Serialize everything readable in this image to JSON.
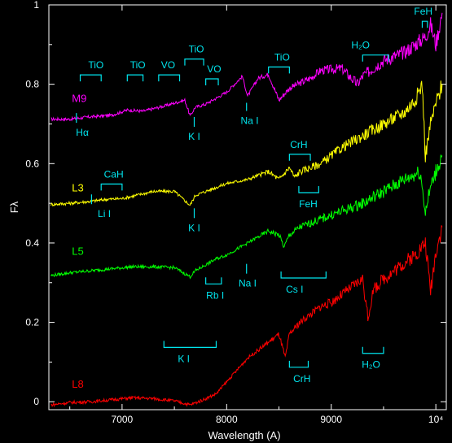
{
  "chart_data": {
    "type": "line",
    "xlabel": "Wavelength (A)",
    "ylabel": "Fλ",
    "xlim": [
      6300,
      10100
    ],
    "ylim": [
      -0.02,
      1.0
    ],
    "x_ticks": [
      {
        "v": 7000,
        "label": "7000"
      },
      {
        "v": 8000,
        "label": "8000"
      },
      {
        "v": 9000,
        "label": "9000"
      },
      {
        "v": 10000,
        "label": "10⁴"
      }
    ],
    "y_ticks": [
      {
        "v": 0,
        "label": "0"
      },
      {
        "v": 0.2,
        "label": "0.2"
      },
      {
        "v": 0.4,
        "label": "0.4"
      },
      {
        "v": 0.6,
        "label": "0.6"
      },
      {
        "v": 0.8,
        "label": "0.8"
      },
      {
        "v": 1.0,
        "label": "1"
      }
    ],
    "series": [
      {
        "name": "M9",
        "color": "#ff00ff",
        "label_x": 6520,
        "label_y": 0.755,
        "x": [
          6320,
          6500,
          6700,
          6900,
          7050,
          7200,
          7400,
          7600,
          7650,
          7700,
          7800,
          8000,
          8150,
          8200,
          8300,
          8400,
          8500,
          8600,
          8800,
          8900,
          9100,
          9250,
          9300,
          9400,
          9500,
          9600,
          9700,
          9800,
          9900,
          9950,
          10000,
          10060
        ],
        "values": [
          0.712,
          0.712,
          0.718,
          0.722,
          0.735,
          0.732,
          0.745,
          0.76,
          0.72,
          0.742,
          0.75,
          0.78,
          0.82,
          0.77,
          0.815,
          0.825,
          0.76,
          0.79,
          0.815,
          0.835,
          0.84,
          0.8,
          0.82,
          0.84,
          0.86,
          0.87,
          0.88,
          0.9,
          0.92,
          0.95,
          0.9,
          0.98
        ]
      },
      {
        "name": "L3",
        "color": "#ffff00",
        "label_x": 6520,
        "label_y": 0.53,
        "x": [
          6320,
          6500,
          6700,
          6850,
          7000,
          7300,
          7500,
          7650,
          7700,
          7800,
          8000,
          8200,
          8400,
          8500,
          8600,
          8650,
          8700,
          8900,
          9100,
          9300,
          9500,
          9700,
          9800,
          9870,
          9900,
          9950,
          10000,
          10060
        ],
        "values": [
          0.497,
          0.5,
          0.505,
          0.51,
          0.512,
          0.53,
          0.53,
          0.495,
          0.52,
          0.53,
          0.55,
          0.56,
          0.58,
          0.56,
          0.59,
          0.565,
          0.58,
          0.6,
          0.64,
          0.67,
          0.7,
          0.73,
          0.76,
          0.8,
          0.62,
          0.7,
          0.75,
          0.8
        ]
      },
      {
        "name": "L5",
        "color": "#00ff00",
        "label_x": 6520,
        "label_y": 0.37,
        "x": [
          6320,
          6500,
          6700,
          6900,
          7100,
          7300,
          7500,
          7650,
          7700,
          7800,
          7900,
          8000,
          8200,
          8400,
          8500,
          8550,
          8600,
          8700,
          8900,
          9100,
          9300,
          9500,
          9700,
          9850,
          9900,
          9950,
          10000,
          10060
        ],
        "values": [
          0.318,
          0.325,
          0.33,
          0.335,
          0.34,
          0.34,
          0.338,
          0.315,
          0.33,
          0.345,
          0.36,
          0.37,
          0.4,
          0.43,
          0.42,
          0.39,
          0.42,
          0.44,
          0.46,
          0.48,
          0.5,
          0.53,
          0.56,
          0.58,
          0.48,
          0.54,
          0.58,
          0.62
        ]
      },
      {
        "name": "L8",
        "color": "#ff0000",
        "label_x": 6520,
        "label_y": 0.035,
        "x": [
          6320,
          6500,
          6700,
          6900,
          7100,
          7300,
          7500,
          7650,
          7750,
          7900,
          8000,
          8100,
          8200,
          8300,
          8400,
          8500,
          8560,
          8600,
          8700,
          8800,
          8900,
          9000,
          9100,
          9200,
          9300,
          9350,
          9400,
          9500,
          9600,
          9700,
          9800,
          9900,
          9950,
          10000,
          10060
        ],
        "values": [
          -0.008,
          -0.002,
          0.0,
          0.005,
          0.01,
          0.008,
          0.002,
          -0.008,
          0.002,
          0.02,
          0.05,
          0.08,
          0.11,
          0.13,
          0.15,
          0.17,
          0.11,
          0.17,
          0.2,
          0.22,
          0.24,
          0.25,
          0.27,
          0.29,
          0.31,
          0.21,
          0.28,
          0.31,
          0.33,
          0.35,
          0.37,
          0.4,
          0.28,
          0.38,
          0.44
        ]
      }
    ],
    "annotations": [
      {
        "label": "TiO",
        "x": 6750,
        "y": 0.84,
        "bracket": [
          6600,
          6800
        ],
        "dir": "down"
      },
      {
        "label": "TiO",
        "x": 7150,
        "y": 0.84,
        "bracket": [
          7050,
          7200
        ],
        "dir": "down"
      },
      {
        "label": "VO",
        "x": 7440,
        "y": 0.84,
        "bracket": [
          7350,
          7550
        ],
        "dir": "down"
      },
      {
        "label": "TiO",
        "x": 7710,
        "y": 0.88,
        "bracket": [
          7600,
          7780
        ],
        "dir": "down"
      },
      {
        "label": "VO",
        "x": 7880,
        "y": 0.83,
        "bracket": [
          7800,
          7920
        ],
        "dir": "down"
      },
      {
        "label": "TiO",
        "x": 8530,
        "y": 0.86,
        "bracket": [
          8400,
          8600
        ],
        "dir": "down"
      },
      {
        "label": "H₂O",
        "x": 9280,
        "y": 0.89,
        "bracket": [
          9300,
          9550
        ],
        "dir": "down"
      },
      {
        "label": "FeH",
        "x": 9880,
        "y": 0.975,
        "bracket": [
          9870,
          9920
        ],
        "dir": "down"
      },
      {
        "label": "Hα",
        "x": 6620,
        "y": 0.67,
        "tick": 6563,
        "dir": "up"
      },
      {
        "label": "K I",
        "x": 7690,
        "y": 0.66,
        "tick": 7690,
        "dir": "up"
      },
      {
        "label": "Na I",
        "x": 8220,
        "y": 0.7,
        "tick": 8190,
        "dir": "none"
      },
      {
        "label": "CaH",
        "x": 6920,
        "y": 0.565,
        "bracket": [
          6800,
          7000
        ],
        "dir": "down"
      },
      {
        "label": "CrH",
        "x": 8690,
        "y": 0.64,
        "bracket": [
          8600,
          8800
        ],
        "dir": "down"
      },
      {
        "label": "Li I",
        "x": 6830,
        "y": 0.465,
        "tick": 6708,
        "dir": "up"
      },
      {
        "label": "K I",
        "x": 7690,
        "y": 0.43,
        "tick": 7690,
        "dir": "up"
      },
      {
        "label": "FeH",
        "x": 8780,
        "y": 0.49,
        "bracket": [
          8690,
          8880
        ],
        "dir": "up"
      },
      {
        "label": "Rb I",
        "x": 7890,
        "y": 0.26,
        "bracket": [
          7800,
          7950
        ],
        "dir": "up"
      },
      {
        "label": "Na I",
        "x": 8200,
        "y": 0.29,
        "tick": 8190,
        "dir": "up"
      },
      {
        "label": "Cs I",
        "x": 8650,
        "y": 0.275,
        "bracket": [
          8520,
          8950
        ],
        "dir": "up"
      },
      {
        "label": "K I",
        "x": 7590,
        "y": 0.1,
        "bracket": [
          7400,
          7900
        ],
        "dir": "up"
      },
      {
        "label": "CrH",
        "x": 8720,
        "y": 0.05,
        "bracket": [
          8600,
          8780
        ],
        "dir": "up"
      },
      {
        "label": "H₂O",
        "x": 9380,
        "y": 0.085,
        "bracket": [
          9300,
          9500
        ],
        "dir": "up"
      }
    ]
  }
}
